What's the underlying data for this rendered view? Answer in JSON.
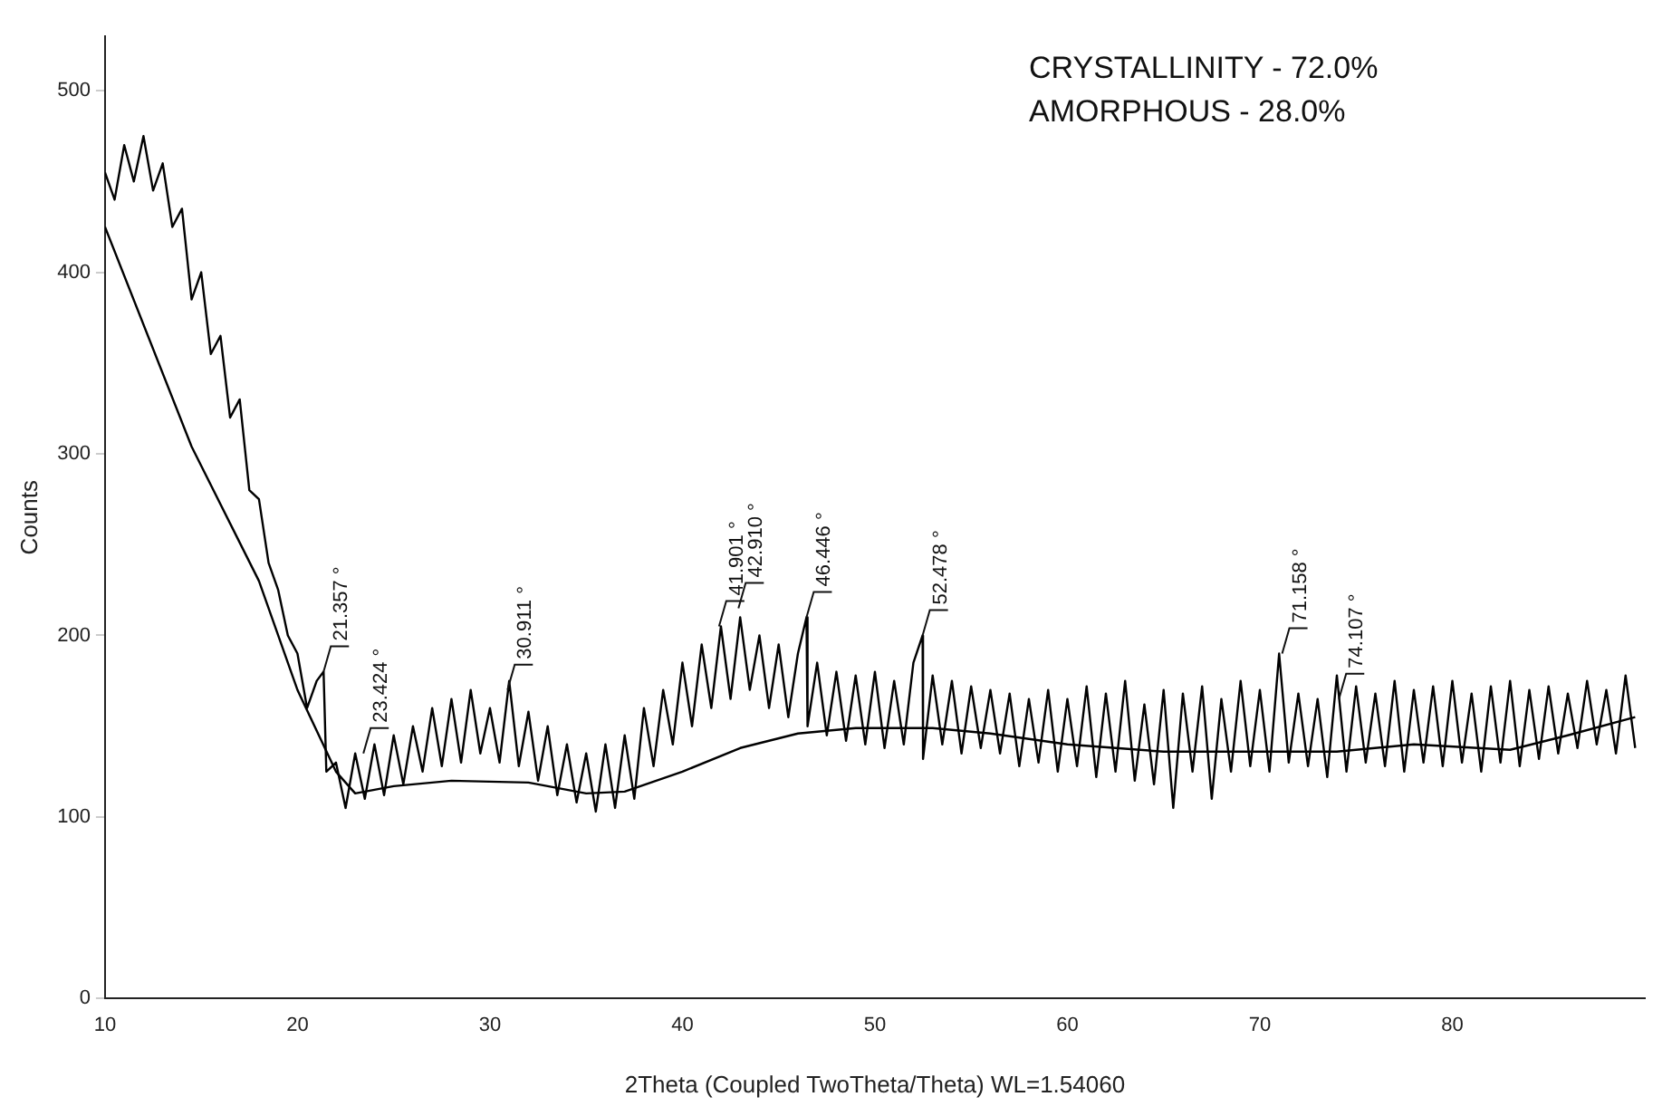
{
  "chart_data": {
    "type": "line",
    "xlabel": "2Theta (Coupled TwoTheta/Theta) WL=1.54060",
    "ylabel": "Counts",
    "xlim": [
      10,
      90
    ],
    "xticks": [
      10,
      20,
      30,
      40,
      50,
      60,
      70,
      80
    ],
    "ylim": [
      0,
      530
    ],
    "yticks": [
      0,
      100,
      200,
      300,
      400,
      500
    ],
    "grid": false,
    "legend": false,
    "marker": "none",
    "line_style": "solid",
    "annotations": [
      "CRYSTALLINITY - 72.0%",
      "AMORPHOUS - 28.0%",
      {
        "text": "21.357 °",
        "x": 21.357,
        "y": 180
      },
      {
        "text": "23.424 °",
        "x": 23.424,
        "y": 135
      },
      {
        "text": "30.911 °",
        "x": 30.911,
        "y": 170
      },
      {
        "text": "41.901 °",
        "x": 41.901,
        "y": 205
      },
      {
        "text": "42.910 °",
        "x": 42.91,
        "y": 215
      },
      {
        "text": "46.446 °",
        "x": 46.446,
        "y": 210
      },
      {
        "text": "52.478 °",
        "x": 52.478,
        "y": 200
      },
      {
        "text": "71.158 °",
        "x": 71.158,
        "y": 190
      },
      {
        "text": "74.107 °",
        "x": 74.107,
        "y": 165
      }
    ],
    "series": [
      {
        "color": "#000000",
        "x": [
          10,
          10.5,
          11,
          11.5,
          12,
          12.5,
          13,
          13.5,
          14,
          14.5,
          15,
          15.5,
          16,
          16.5,
          17,
          17.5,
          18,
          18.5,
          19,
          19.5,
          20,
          20.5,
          21,
          21.357,
          21.5,
          22,
          22.5,
          23,
          23.5,
          24,
          24.5,
          25,
          25.5,
          26,
          26.5,
          27,
          27.5,
          28,
          28.5,
          29,
          29.5,
          30,
          30.5,
          31,
          31.5,
          32,
          32.5,
          33,
          33.5,
          34,
          34.5,
          35,
          35.5,
          36,
          36.5,
          37,
          37.5,
          38,
          38.5,
          39,
          39.5,
          40,
          40.5,
          41,
          41.5,
          42,
          42.5,
          43,
          43.5,
          44,
          44.5,
          45,
          45.5,
          46,
          46.446,
          46.5,
          47,
          47.5,
          48,
          48.5,
          49,
          49.5,
          50,
          50.5,
          51,
          51.5,
          52,
          52.478,
          52.5,
          53,
          53.5,
          54,
          54.5,
          55,
          55.5,
          56,
          56.5,
          57,
          57.5,
          58,
          58.5,
          59,
          59.5,
          60,
          60.5,
          61,
          61.5,
          62,
          62.5,
          63,
          63.5,
          64,
          64.5,
          65,
          65.5,
          66,
          66.5,
          67,
          67.5,
          68,
          68.5,
          69,
          69.5,
          70,
          70.5,
          71,
          71.5,
          72,
          72.5,
          73,
          73.5,
          74,
          74.5,
          75,
          75.5,
          76,
          76.5,
          77,
          77.5,
          78,
          78.5,
          79,
          79.5,
          80,
          80.5,
          81,
          81.5,
          82,
          82.5,
          83,
          83.5,
          84,
          84.5,
          85,
          85.5,
          86,
          86.5,
          87,
          87.5,
          88,
          88.5,
          89,
          89.5
        ],
        "values": [
          455,
          440,
          470,
          450,
          475,
          445,
          460,
          425,
          435,
          385,
          400,
          355,
          365,
          320,
          330,
          280,
          275,
          240,
          225,
          200,
          190,
          160,
          175,
          180,
          125,
          130,
          105,
          135,
          110,
          140,
          112,
          145,
          118,
          150,
          125,
          160,
          128,
          165,
          130,
          170,
          135,
          160,
          130,
          175,
          128,
          158,
          120,
          150,
          112,
          140,
          108,
          135,
          103,
          140,
          105,
          145,
          110,
          160,
          128,
          170,
          140,
          185,
          150,
          195,
          160,
          205,
          165,
          210,
          170,
          200,
          160,
          195,
          155,
          190,
          210,
          150,
          185,
          145,
          180,
          142,
          178,
          140,
          180,
          138,
          175,
          140,
          185,
          200,
          132,
          178,
          140,
          175,
          135,
          172,
          138,
          170,
          135,
          168,
          128,
          165,
          130,
          170,
          125,
          165,
          128,
          172,
          122,
          168,
          125,
          175,
          120,
          162,
          118,
          170,
          105,
          168,
          125,
          172,
          110,
          165,
          125,
          175,
          128,
          170,
          125,
          190,
          130,
          168,
          128,
          165,
          122,
          178,
          125,
          172,
          130,
          168,
          128,
          175,
          125,
          170,
          130,
          172,
          128,
          175,
          130,
          168,
          125,
          172,
          130,
          175,
          128,
          170,
          132,
          172,
          135,
          168,
          138,
          175,
          140,
          170,
          135,
          178,
          138
        ]
      },
      {
        "color": "#000000",
        "x": [
          10,
          14.5,
          18,
          20,
          22,
          23,
          25,
          28,
          32,
          35,
          37,
          40,
          43,
          46,
          49,
          53,
          56,
          60,
          65,
          70,
          74,
          78,
          83,
          86,
          89.5
        ],
        "values": [
          425,
          304,
          230,
          170,
          125,
          113,
          117,
          120,
          119,
          113,
          114,
          125,
          138,
          146,
          149,
          149,
          146,
          140,
          136,
          136,
          136,
          140,
          137,
          145,
          155
        ]
      }
    ]
  }
}
